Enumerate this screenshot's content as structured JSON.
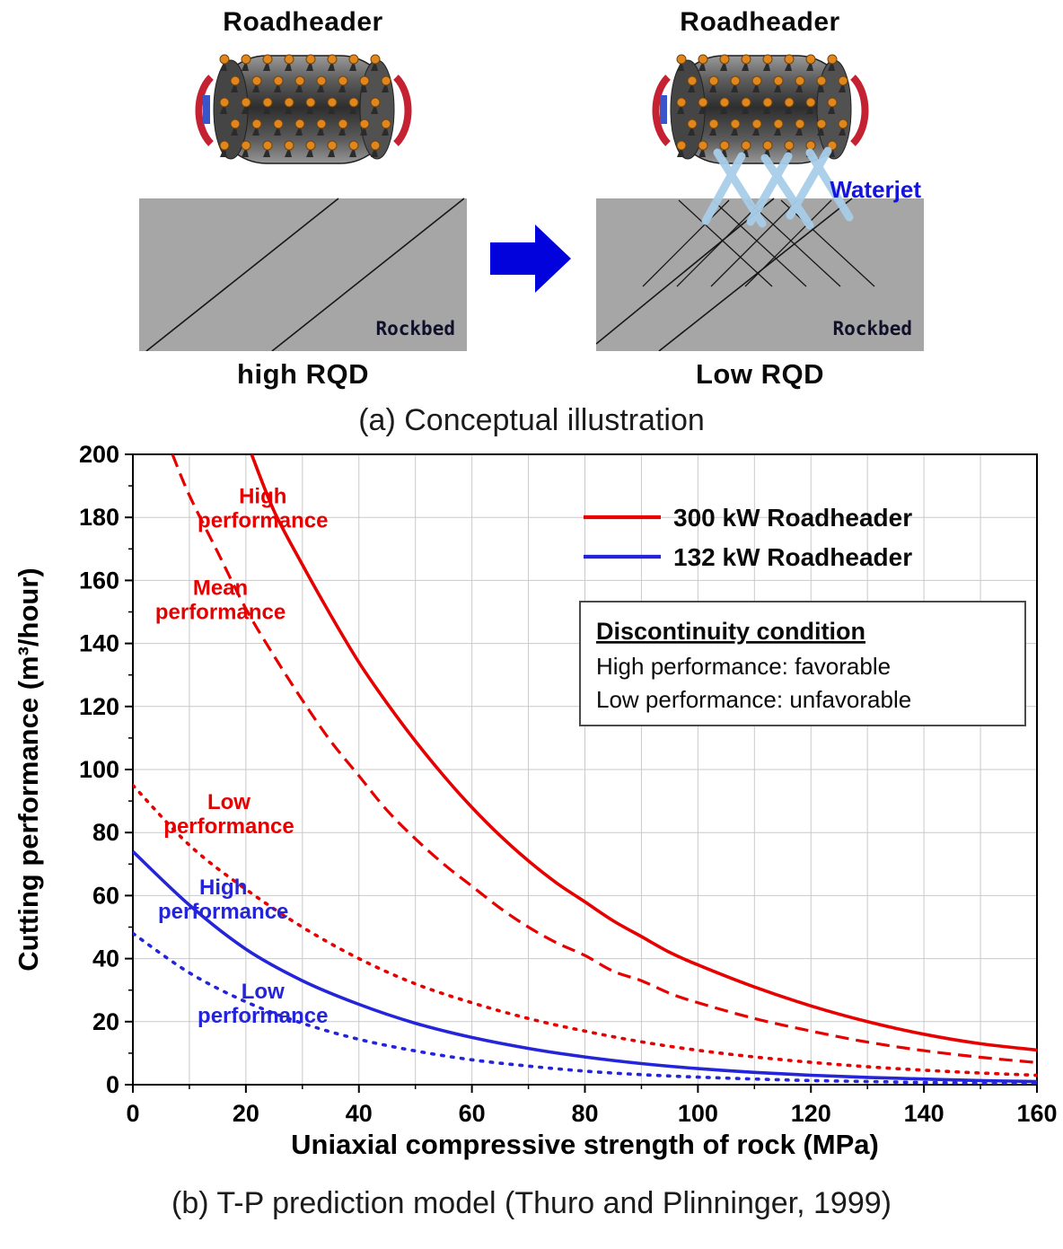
{
  "concept": {
    "left": {
      "title": "Roadheader",
      "rockbed_label": "Rockbed",
      "caption": "high RQD"
    },
    "right": {
      "title": "Roadheader",
      "rockbed_label": "Rockbed",
      "caption": "Low RQD",
      "waterjet_label": "Waterjet"
    }
  },
  "captions": {
    "a": "(a) Conceptual illustration",
    "b": "(b) T-P prediction model (Thuro and Plinninger, 1999)"
  },
  "colors": {
    "red": "#e60000",
    "blue": "#2424d8",
    "arrow_blue": "#0202dd",
    "rock_gray": "#a6a6a6"
  },
  "chart_data": {
    "type": "line",
    "xlabel": "Uniaxial compressive strength of rock (MPa)",
    "ylabel": "Cutting performance (m³/hour)",
    "xlim": [
      0,
      160
    ],
    "ylim": [
      0,
      200
    ],
    "xticks": [
      0,
      20,
      40,
      60,
      80,
      100,
      120,
      140,
      160
    ],
    "yticks": [
      0,
      20,
      40,
      60,
      80,
      100,
      120,
      140,
      160,
      180,
      200
    ],
    "grid": true,
    "legend": {
      "position": "top-right-inside",
      "entries": [
        {
          "label": "300 kW Roadheader",
          "color": "#e60000"
        },
        {
          "label": "132 kW Roadheader",
          "color": "#2424d8"
        }
      ]
    },
    "note_box": {
      "title": "Discontinuity condition",
      "lines": [
        "High performance: favorable",
        "Low performance: unfavorable"
      ]
    },
    "series": [
      {
        "name": "300 kW High performance",
        "color": "#e60000",
        "style": "solid",
        "points": [
          [
            21,
            200
          ],
          [
            25,
            182
          ],
          [
            30,
            165
          ],
          [
            35,
            149
          ],
          [
            40,
            134
          ],
          [
            45,
            121
          ],
          [
            50,
            109
          ],
          [
            55,
            98
          ],
          [
            60,
            88
          ],
          [
            65,
            79
          ],
          [
            70,
            71
          ],
          [
            75,
            64
          ],
          [
            80,
            58
          ],
          [
            85,
            52
          ],
          [
            90,
            47
          ],
          [
            95,
            42
          ],
          [
            100,
            38
          ],
          [
            110,
            31
          ],
          [
            120,
            25
          ],
          [
            130,
            20
          ],
          [
            140,
            16
          ],
          [
            150,
            13
          ],
          [
            160,
            11
          ]
        ]
      },
      {
        "name": "300 kW Mean performance",
        "color": "#e60000",
        "style": "dashed",
        "points": [
          [
            7,
            200
          ],
          [
            10,
            187
          ],
          [
            15,
            169
          ],
          [
            20,
            151
          ],
          [
            25,
            136
          ],
          [
            30,
            122
          ],
          [
            35,
            109
          ],
          [
            40,
            98
          ],
          [
            45,
            87
          ],
          [
            50,
            78
          ],
          [
            55,
            70
          ],
          [
            60,
            63
          ],
          [
            65,
            56
          ],
          [
            70,
            50
          ],
          [
            75,
            45
          ],
          [
            80,
            41
          ],
          [
            85,
            36
          ],
          [
            90,
            33
          ],
          [
            95,
            29
          ],
          [
            100,
            26
          ],
          [
            110,
            21
          ],
          [
            120,
            17
          ],
          [
            130,
            13.5
          ],
          [
            140,
            10.8
          ],
          [
            150,
            8.7
          ],
          [
            160,
            7
          ]
        ]
      },
      {
        "name": "300 kW Low performance",
        "color": "#e60000",
        "style": "dotted",
        "points": [
          [
            0,
            95
          ],
          [
            10,
            76
          ],
          [
            20,
            62
          ],
          [
            30,
            50
          ],
          [
            40,
            40
          ],
          [
            50,
            32
          ],
          [
            60,
            26
          ],
          [
            70,
            21
          ],
          [
            80,
            17
          ],
          [
            90,
            13.6
          ],
          [
            100,
            10.9
          ],
          [
            110,
            8.8
          ],
          [
            120,
            7.1
          ],
          [
            130,
            5.7
          ],
          [
            140,
            4.6
          ],
          [
            150,
            3.7
          ],
          [
            160,
            3
          ]
        ]
      },
      {
        "name": "132 kW High performance",
        "color": "#2424d8",
        "style": "solid",
        "points": [
          [
            0,
            74
          ],
          [
            10,
            57
          ],
          [
            20,
            43
          ],
          [
            30,
            33
          ],
          [
            40,
            25.5
          ],
          [
            50,
            19.5
          ],
          [
            60,
            15
          ],
          [
            70,
            11.5
          ],
          [
            80,
            8.8
          ],
          [
            90,
            6.7
          ],
          [
            100,
            5.1
          ],
          [
            110,
            3.9
          ],
          [
            120,
            3
          ],
          [
            130,
            2.3
          ],
          [
            140,
            1.8
          ],
          [
            150,
            1.3
          ],
          [
            160,
            1
          ]
        ]
      },
      {
        "name": "132 kW Low performance",
        "color": "#2424d8",
        "style": "dotted",
        "points": [
          [
            0,
            48
          ],
          [
            10,
            35.5
          ],
          [
            20,
            26.3
          ],
          [
            30,
            19.5
          ],
          [
            40,
            14.4
          ],
          [
            50,
            10.7
          ],
          [
            60,
            7.9
          ],
          [
            70,
            5.9
          ],
          [
            80,
            4.3
          ],
          [
            90,
            3.2
          ],
          [
            100,
            2.4
          ],
          [
            110,
            1.8
          ],
          [
            120,
            1.3
          ],
          [
            130,
            1
          ],
          [
            140,
            0.7
          ],
          [
            150,
            0.5
          ],
          [
            160,
            0.4
          ]
        ]
      }
    ],
    "annotations": [
      {
        "lines": [
          "High",
          "performance"
        ],
        "color": "#e60000",
        "x": 23,
        "y": 181
      },
      {
        "lines": [
          "Mean",
          "performance"
        ],
        "color": "#e60000",
        "x": 15.5,
        "y": 152
      },
      {
        "lines": [
          "Low",
          "performance"
        ],
        "color": "#e60000",
        "x": 17,
        "y": 84
      },
      {
        "lines": [
          "High",
          "performance"
        ],
        "color": "#2424d8",
        "x": 16,
        "y": 57
      },
      {
        "lines": [
          "Low",
          "performance"
        ],
        "color": "#2424d8",
        "x": 23,
        "y": 24
      }
    ]
  }
}
